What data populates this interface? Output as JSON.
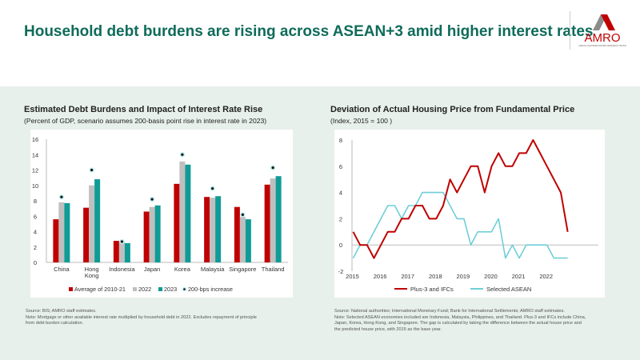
{
  "header": {
    "title": "Household debt burdens are rising across ASEAN+3 amid higher interest rates",
    "logo_text": "AMRO",
    "logo_subtext": "ASEAN+3 MACROECONOMIC RESEARCH OFFICE"
  },
  "colors": {
    "title": "#0f6b5a",
    "red": "#c00000",
    "grey": "#bfbfbf",
    "teal": "#0f9b96",
    "cyan": "#6fcfd6"
  },
  "left": {
    "title": "Estimated Debt Burdens and Impact of Interest Rate Rise",
    "subtitle": "(Percent of GDP, scenario assumes 200-basis point rise in interest rate in 2023)",
    "source": "Source: BIS; AMRO staff estimates.",
    "note": "Note: Mortgage or other available interest rate multiplied by household debt in 2022. Excludes repayment of principle from debt burden calculation."
  },
  "right": {
    "title": "Deviation of Actual Housing Price from Fundamental Price",
    "subtitle": "(Index, 2015 = 100 )",
    "source": "Source: National authorities; International Monetary Fund; Bank for International Settlements; AMRO staff estimates.",
    "note": "Note: Selected ASEAN economies included are Indonesia, Malaysia, Philippines, and Thailand. Plus-3 and IFCs include China, Japan, Korea, Hong Kong, and Singapore. The gap is calculated by taking the difference between the actual house price and the predicted house price, with 2015 as the base year."
  },
  "chart_data": [
    {
      "type": "bar",
      "categories": [
        "China",
        "Hong Kong",
        "Indonesia",
        "Japan",
        "Korea",
        "Malaysia",
        "Singapore",
        "Thailand"
      ],
      "series": [
        {
          "name": "Average of 2010-21",
          "values": [
            5.6,
            7.1,
            2.8,
            6.6,
            10.2,
            8.5,
            7.2,
            10.1
          ]
        },
        {
          "name": "2022",
          "values": [
            7.8,
            10.0,
            2.7,
            7.2,
            13.1,
            8.4,
            5.9,
            10.9
          ]
        },
        {
          "name": "2023",
          "values": [
            7.7,
            10.8,
            2.5,
            7.4,
            12.7,
            8.6,
            5.6,
            11.2
          ]
        },
        {
          "name": "200-bps increase",
          "marker": "dot",
          "values": [
            8.5,
            12.0,
            2.7,
            8.2,
            14.0,
            9.6,
            6.2,
            12.3
          ]
        }
      ],
      "ylim": [
        0,
        16
      ],
      "yticks": [
        0,
        2,
        4,
        6,
        8,
        10,
        12,
        14,
        16
      ],
      "legend": "bottom"
    },
    {
      "type": "line",
      "xticks": [
        "2015",
        "2016",
        "2017",
        "2018",
        "2019",
        "2020",
        "2021",
        "2022"
      ],
      "x_frequency": "quarterly, 2015Q1-2022Q4",
      "series": [
        {
          "name": "Plus-3 and IFCs",
          "values": [
            1,
            0,
            0,
            -1,
            0,
            1,
            1,
            2,
            2,
            3,
            3,
            2,
            2,
            3,
            5,
            4,
            5,
            6,
            6,
            4,
            6,
            7,
            6,
            6,
            7,
            7,
            8,
            7,
            6,
            5,
            4,
            1
          ]
        },
        {
          "name": "Selected ASEAN",
          "values": [
            -1,
            0,
            0,
            1,
            2,
            3,
            3,
            2,
            3,
            3,
            4,
            4,
            4,
            4,
            3,
            2,
            2,
            0,
            1,
            1,
            1,
            2,
            -1,
            0,
            -1,
            0,
            0,
            0,
            0,
            -1,
            -1,
            -1
          ]
        }
      ],
      "ylim": [
        -2,
        8
      ],
      "yticks": [
        -2,
        0,
        2,
        4,
        6,
        8
      ],
      "legend": "bottom"
    }
  ]
}
